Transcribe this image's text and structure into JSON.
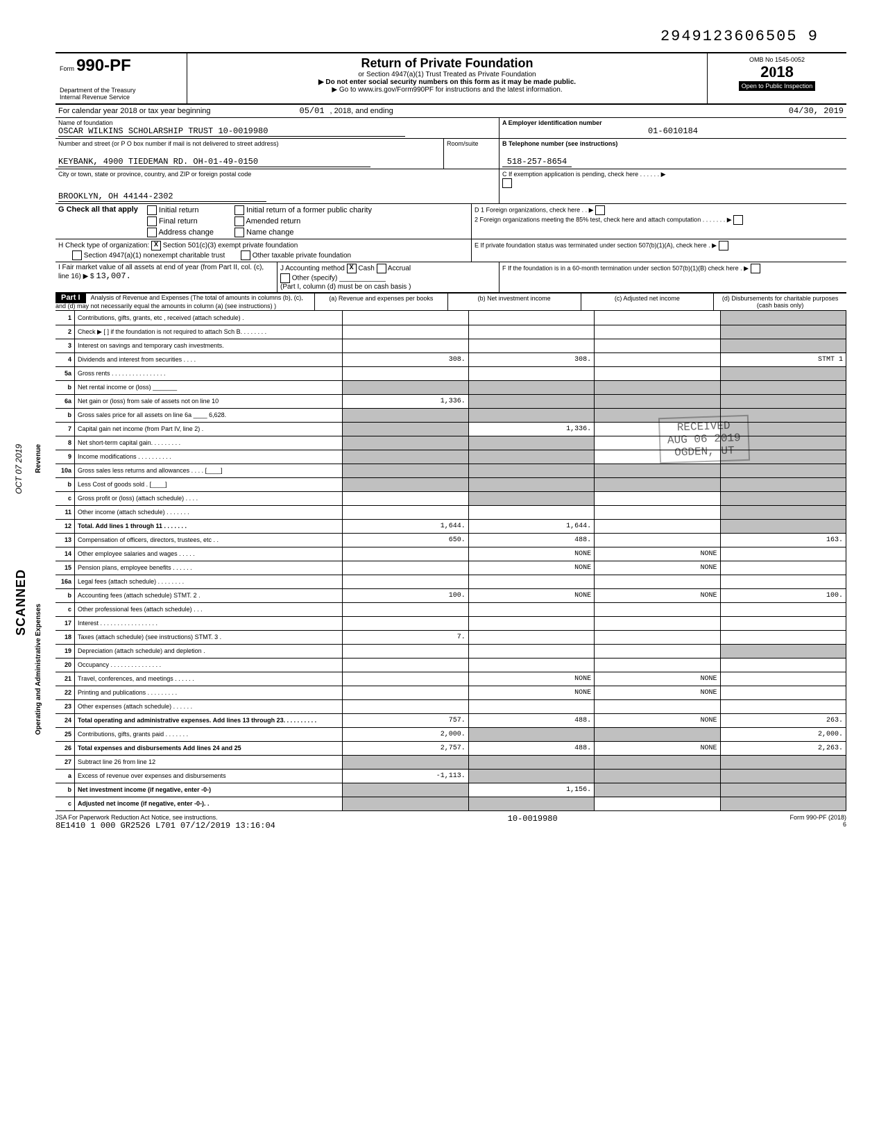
{
  "page_stamp": "2949123606505 9",
  "form": {
    "number": "990-PF",
    "prefix": "Form",
    "dept": "Department of the Treasury",
    "irs": "Internal Revenue Service",
    "title": "Return of Private Foundation",
    "subtitle1": "or Section 4947(a)(1) Trust Treated as Private Foundation",
    "subtitle2": "▶ Do not enter social security numbers on this form as it may be made public.",
    "subtitle3": "▶ Go to www.irs.gov/Form990PF for instructions and the latest information.",
    "omb": "OMB No 1545-0052",
    "year": "2018",
    "inspection": "Open to Public Inspection"
  },
  "period": {
    "line": "For calendar year 2018 or tax year beginning",
    "begin": "05/01",
    "mid": ", 2018, and ending",
    "end": "04/30, 2019"
  },
  "foundation": {
    "name_label": "Name of foundation",
    "name": "OSCAR WILKINS SCHOLARSHIP TRUST 10-0019980",
    "addr_label": "Number and street (or P O box number if mail is not delivered to street address)",
    "addr": "KEYBANK, 4900 TIEDEMAN RD. OH-01-49-0150",
    "room_label": "Room/suite",
    "city_label": "City or town, state or province, country, and ZIP or foreign postal code",
    "city": "BROOKLYN, OH 44144-2302"
  },
  "box_a": {
    "label": "A  Employer identification number",
    "value": "01-6010184"
  },
  "box_b": {
    "label": "B  Telephone number (see instructions)",
    "value": "518-257-8654"
  },
  "box_c": {
    "label": "C  If exemption application is pending, check here . . . . . . ▶"
  },
  "box_d": {
    "d1": "D 1 Foreign organizations, check here . . ▶",
    "d2": "2 Foreign organizations meeting the 85% test, check here and attach computation . . . . . . . ▶"
  },
  "box_e": {
    "label": "E  If private foundation status was terminated under section 507(b)(1)(A), check here . ▶"
  },
  "box_f": {
    "label": "F  If the foundation is in a 60-month termination under section 507(b)(1)(B) check here . ▶"
  },
  "g": {
    "label": "G Check all that apply",
    "opts": [
      "Initial return",
      "Final return",
      "Address change",
      "Initial return of a former public charity",
      "Amended return",
      "Name change"
    ]
  },
  "h": {
    "label": "H Check type of organization:",
    "o1": "Section 501(c)(3) exempt private foundation",
    "o2": "Section 4947(a)(1) nonexempt charitable trust",
    "o3": "Other taxable private foundation",
    "checked": "X"
  },
  "i": {
    "label": "I  Fair market value of all assets at end of year (from Part II, col. (c), line 16) ▶ $",
    "value": "13,007."
  },
  "j": {
    "label": "J Accounting method",
    "cash": "Cash",
    "accrual": "Accrual",
    "other": "Other (specify)",
    "note": "(Part I, column (d) must be on cash basis )",
    "cash_checked": "X"
  },
  "part1": {
    "tag": "Part I",
    "desc": "Analysis of Revenue and Expenses (The total of amounts in columns (b), (c), and (d) may not necessarily equal the amounts in column (a) (see instructions) )",
    "cols": [
      "(a) Revenue and expenses per books",
      "(b) Net investment income",
      "(c) Adjusted net income",
      "(d) Disbursements for charitable purposes (cash basis only)"
    ]
  },
  "rows": [
    {
      "n": "1",
      "d": "Contributions, gifts, grants, etc , received (attach schedule) .",
      "a": "",
      "b": "",
      "c": "",
      "dcol": "",
      "d_block": true
    },
    {
      "n": "2",
      "d": "Check ▶ [ ] if the foundation is not required to attach Sch B. . . . . . . .",
      "a": "",
      "b": "",
      "c": "",
      "dcol": "",
      "d_block": true
    },
    {
      "n": "3",
      "d": "Interest on savings and temporary cash investments.",
      "a": "",
      "b": "",
      "c": "",
      "dcol": "",
      "d_block": true
    },
    {
      "n": "4",
      "d": "Dividends and interest from securities . . . .",
      "a": "308.",
      "b": "308.",
      "c": "",
      "dcol": "STMT 1",
      "d_block": false
    },
    {
      "n": "5a",
      "d": "Gross rents . . . . . . . . . . . . . . . .",
      "a": "",
      "b": "",
      "c": "",
      "dcol": "",
      "d_block": true
    },
    {
      "n": "b",
      "d": "Net rental income or (loss) _______",
      "a": "",
      "b": "",
      "c": "",
      "dcol": "",
      "d_block": true,
      "a_block": true,
      "b_block": true,
      "c_block": true
    },
    {
      "n": "6a",
      "d": "Net gain or (loss) from sale of assets not on line 10",
      "a": "1,336.",
      "b": "",
      "c": "",
      "dcol": "",
      "d_block": true,
      "b_block": true,
      "c_block": true
    },
    {
      "n": "b",
      "d": "Gross sales price for all assets on line 6a ____ 6,628.",
      "a": "",
      "b": "",
      "c": "",
      "dcol": "",
      "a_block": true,
      "b_block": true,
      "c_block": true,
      "d_block": true
    },
    {
      "n": "7",
      "d": "Capital gain net income (from Part IV, line 2) .",
      "a": "",
      "b": "1,336.",
      "c": "",
      "dcol": "",
      "a_block": true,
      "d_block": true
    },
    {
      "n": "8",
      "d": "Net short-term capital gain. . . . . . . . .",
      "a": "",
      "b": "",
      "c": "",
      "dcol": "",
      "a_block": true,
      "b_block": true,
      "d_block": true
    },
    {
      "n": "9",
      "d": "Income modifications . . . . . . . . . .",
      "a": "",
      "b": "",
      "c": "",
      "dcol": "",
      "a_block": true,
      "b_block": true,
      "d_block": true
    },
    {
      "n": "10a",
      "d": "Gross sales less returns and allowances . . . . [____]",
      "a": "",
      "b": "",
      "c": "",
      "dcol": "",
      "a_block": true,
      "b_block": true,
      "c_block": true,
      "d_block": true
    },
    {
      "n": "b",
      "d": "Less Cost of goods sold . [____]",
      "a": "",
      "b": "",
      "c": "",
      "dcol": "",
      "a_block": true,
      "b_block": true,
      "c_block": true,
      "d_block": true
    },
    {
      "n": "c",
      "d": "Gross profit or (loss) (attach schedule) . . . .",
      "a": "",
      "b": "",
      "c": "",
      "dcol": "",
      "b_block": true,
      "d_block": true
    },
    {
      "n": "11",
      "d": "Other income (attach schedule) . . . . . . .",
      "a": "",
      "b": "",
      "c": "",
      "dcol": "",
      "d_block": true
    },
    {
      "n": "12",
      "d": "Total. Add lines 1 through 11 . . . . . . .",
      "a": "1,644.",
      "b": "1,644.",
      "c": "",
      "dcol": "",
      "d_block": true,
      "bold": true
    },
    {
      "n": "13",
      "d": "Compensation of officers, directors, trustees, etc . .",
      "a": "650.",
      "b": "488.",
      "c": "",
      "dcol": "163."
    },
    {
      "n": "14",
      "d": "Other employee salaries and wages . . . . .",
      "a": "",
      "b": "NONE",
      "c": "NONE",
      "dcol": ""
    },
    {
      "n": "15",
      "d": "Pension plans, employee benefits . . . . . .",
      "a": "",
      "b": "NONE",
      "c": "NONE",
      "dcol": ""
    },
    {
      "n": "16a",
      "d": "Legal fees (attach schedule) . . . . . . . .",
      "a": "",
      "b": "",
      "c": "",
      "dcol": ""
    },
    {
      "n": "b",
      "d": "Accounting fees (attach schedule) STMT. 2 .",
      "a": "100.",
      "b": "NONE",
      "c": "NONE",
      "dcol": "100."
    },
    {
      "n": "c",
      "d": "Other professional fees (attach schedule) . . .",
      "a": "",
      "b": "",
      "c": "",
      "dcol": ""
    },
    {
      "n": "17",
      "d": "Interest . . . . . . . . . . . . . . . . .",
      "a": "",
      "b": "",
      "c": "",
      "dcol": ""
    },
    {
      "n": "18",
      "d": "Taxes (attach schedule) (see instructions) STMT. 3 .",
      "a": "7.",
      "b": "",
      "c": "",
      "dcol": ""
    },
    {
      "n": "19",
      "d": "Depreciation (attach schedule) and depletion .",
      "a": "",
      "b": "",
      "c": "",
      "dcol": "",
      "d_block": true
    },
    {
      "n": "20",
      "d": "Occupancy . . . . . . . . . . . . . . .",
      "a": "",
      "b": "",
      "c": "",
      "dcol": ""
    },
    {
      "n": "21",
      "d": "Travel, conferences, and meetings . . . . . .",
      "a": "",
      "b": "NONE",
      "c": "NONE",
      "dcol": ""
    },
    {
      "n": "22",
      "d": "Printing and publications . . . . . . . . .",
      "a": "",
      "b": "NONE",
      "c": "NONE",
      "dcol": ""
    },
    {
      "n": "23",
      "d": "Other expenses (attach schedule) . . . . . .",
      "a": "",
      "b": "",
      "c": "",
      "dcol": ""
    },
    {
      "n": "24",
      "d": "Total operating and administrative expenses. Add lines 13 through 23. . . . . . . . . .",
      "a": "757.",
      "b": "488.",
      "c": "NONE",
      "dcol": "263.",
      "bold": true
    },
    {
      "n": "25",
      "d": "Contributions, gifts, grants paid . . . . . . .",
      "a": "2,000.",
      "b": "",
      "c": "",
      "dcol": "2,000.",
      "b_block": true,
      "c_block": true
    },
    {
      "n": "26",
      "d": "Total expenses and disbursements Add lines 24 and 25",
      "a": "2,757.",
      "b": "488.",
      "c": "NONE",
      "dcol": "2,263.",
      "bold": true
    },
    {
      "n": "27",
      "d": "Subtract line 26 from line 12",
      "a": "",
      "b": "",
      "c": "",
      "dcol": "",
      "a_block": true,
      "b_block": true,
      "c_block": true,
      "d_block": true
    },
    {
      "n": "a",
      "d": "Excess of revenue over expenses and disbursements",
      "a": "-1,113.",
      "b": "",
      "c": "",
      "dcol": "",
      "b_block": true,
      "c_block": true,
      "d_block": true
    },
    {
      "n": "b",
      "d": "Net investment income (if negative, enter -0-)",
      "a": "",
      "b": "1,156.",
      "c": "",
      "dcol": "",
      "a_block": true,
      "c_block": true,
      "d_block": true,
      "bold": true
    },
    {
      "n": "c",
      "d": "Adjusted net income (if negative, enter -0-). .",
      "a": "",
      "b": "",
      "c": "",
      "dcol": "",
      "a_block": true,
      "b_block": true,
      "d_block": true,
      "bold": true
    }
  ],
  "stamp": {
    "line1": "RECEIVED",
    "line2": "AUG 06 2019",
    "line3": "OGDEN, UT"
  },
  "footer": {
    "left1": "JSA For Paperwork Reduction Act Notice, see instructions.",
    "left2": "8E1410 1 000 GR2526 L701 07/12/2019 13:16:04",
    "mid": "10-0019980",
    "right1": "Form 990-PF (2018)",
    "right2": "6"
  },
  "side": {
    "scanned": "SCANNED",
    "revenue": "Revenue",
    "expenses": "Operating and Administrative Expenses",
    "hand_date": "OCT 07 2019"
  },
  "colors": {
    "block": "#c0c0c0",
    "black": "#000000",
    "white": "#ffffff"
  }
}
